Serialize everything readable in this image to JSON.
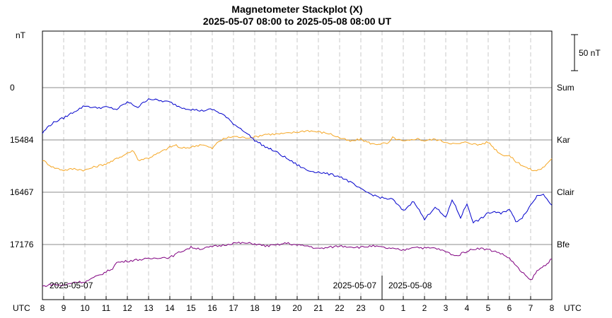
{
  "chart_data": {
    "type": "line",
    "title": "Magnetometer Stackplot (X)",
    "subtitle": "2025-05-07 08:00 to 2025-05-08 08:00 UT",
    "y_unit": "nT",
    "x_unit_left": "UTC",
    "x_unit_right": "UTC",
    "scale_bar_label": "50 nT",
    "scale_bar_value": 50,
    "x_ticks": [
      "8",
      "9",
      "10",
      "11",
      "12",
      "13",
      "14",
      "15",
      "16",
      "17",
      "18",
      "19",
      "20",
      "21",
      "22",
      "23",
      "0",
      "1",
      "2",
      "3",
      "4",
      "5",
      "6",
      "7",
      "8"
    ],
    "date_labels": [
      "2025-05-07",
      "2025-05-07",
      "2025-05-08"
    ],
    "grid": true,
    "series": [
      {
        "name": "Sum",
        "baseline_label": "0",
        "color": "#000000",
        "baseline_value": 0,
        "values": []
      },
      {
        "name": "Kar",
        "baseline_label": "15484",
        "color": "#f5a623",
        "baseline_value": 15484,
        "values": [
          [
            0,
            -28
          ],
          [
            0.5,
            -38
          ],
          [
            1,
            -42
          ],
          [
            1.5,
            -40
          ],
          [
            2,
            -42
          ],
          [
            2.5,
            -37
          ],
          [
            3,
            -33
          ],
          [
            3.3,
            -30
          ],
          [
            3.5,
            -25
          ],
          [
            3.8,
            -22
          ],
          [
            4,
            -18
          ],
          [
            4.3,
            -15
          ],
          [
            4.5,
            -28
          ],
          [
            5,
            -25
          ],
          [
            5.5,
            -18
          ],
          [
            6,
            -10
          ],
          [
            6.3,
            -7
          ],
          [
            6.5,
            -12
          ],
          [
            7,
            -10
          ],
          [
            7.5,
            -6
          ],
          [
            8,
            -12
          ],
          [
            8.3,
            -2
          ],
          [
            8.6,
            2
          ],
          [
            9,
            5
          ],
          [
            9.5,
            3
          ],
          [
            10,
            4
          ],
          [
            10.5,
            8
          ],
          [
            11,
            8
          ],
          [
            11.5,
            9
          ],
          [
            12,
            11
          ],
          [
            12.5,
            13
          ],
          [
            13,
            11
          ],
          [
            13.5,
            9
          ],
          [
            14,
            3
          ],
          [
            14.5,
            -2
          ],
          [
            15,
            1
          ],
          [
            15.3,
            -3
          ],
          [
            15.6,
            -6
          ],
          [
            16,
            -5
          ],
          [
            16.3,
            -5
          ],
          [
            16.5,
            3
          ],
          [
            17,
            -2
          ],
          [
            17.3,
            -1
          ],
          [
            17.6,
            2
          ],
          [
            18,
            -1
          ],
          [
            18.5,
            1
          ],
          [
            19,
            -3
          ],
          [
            19.5,
            -6
          ],
          [
            20,
            -3
          ],
          [
            20.5,
            -7
          ],
          [
            21,
            -3
          ],
          [
            21.3,
            -12
          ],
          [
            21.6,
            -20
          ],
          [
            22,
            -22
          ],
          [
            22.3,
            -30
          ],
          [
            22.6,
            -35
          ],
          [
            22.9,
            -40
          ],
          [
            23.2,
            -43
          ],
          [
            23.5,
            -40
          ],
          [
            23.8,
            -33
          ],
          [
            24,
            -26
          ]
        ]
      },
      {
        "name": "Clair",
        "baseline_label": "16467",
        "color": "#0000cc",
        "baseline_value": 16467,
        "values": [
          [
            0,
            82
          ],
          [
            0.3,
            92
          ],
          [
            0.6,
            98
          ],
          [
            1,
            103
          ],
          [
            1.5,
            112
          ],
          [
            2,
            120
          ],
          [
            2.5,
            117
          ],
          [
            3,
            118
          ],
          [
            3.5,
            115
          ],
          [
            4,
            125
          ],
          [
            4.5,
            118
          ],
          [
            5,
            130
          ],
          [
            5.5,
            127
          ],
          [
            6,
            125
          ],
          [
            6.5,
            118
          ],
          [
            7,
            115
          ],
          [
            7.5,
            113
          ],
          [
            8,
            115
          ],
          [
            8.5,
            108
          ],
          [
            9,
            95
          ],
          [
            9.5,
            85
          ],
          [
            10,
            72
          ],
          [
            10.5,
            63
          ],
          [
            11,
            56
          ],
          [
            11.5,
            47
          ],
          [
            12,
            38
          ],
          [
            12.5,
            30
          ],
          [
            13,
            28
          ],
          [
            13.5,
            25
          ],
          [
            14,
            22
          ],
          [
            14.5,
            14
          ],
          [
            15,
            4
          ],
          [
            15.5,
            -3
          ],
          [
            16,
            -8
          ],
          [
            16.5,
            -10
          ],
          [
            17,
            -26
          ],
          [
            17.5,
            -12
          ],
          [
            18,
            -38
          ],
          [
            18.5,
            -20
          ],
          [
            19,
            -36
          ],
          [
            19.3,
            -10
          ],
          [
            19.7,
            -35
          ],
          [
            20,
            -16
          ],
          [
            20.3,
            -42
          ],
          [
            20.6,
            -38
          ],
          [
            21,
            -29
          ],
          [
            21.3,
            -27
          ],
          [
            21.6,
            -30
          ],
          [
            22,
            -23
          ],
          [
            22.3,
            -41
          ],
          [
            22.6,
            -35
          ],
          [
            23,
            -18
          ],
          [
            23.3,
            -5
          ],
          [
            23.6,
            -2
          ],
          [
            24,
            -18
          ]
        ]
      },
      {
        "name": "Bfe",
        "baseline_label": "17176",
        "color": "#800080",
        "baseline_value": 17176,
        "values": [
          [
            0,
            -58
          ],
          [
            0.5,
            -55
          ],
          [
            1,
            -57
          ],
          [
            1.5,
            -52
          ],
          [
            2,
            -52
          ],
          [
            2.5,
            -45
          ],
          [
            3,
            -38
          ],
          [
            3.3,
            -33
          ],
          [
            3.5,
            -25
          ],
          [
            4,
            -23
          ],
          [
            4.5,
            -21
          ],
          [
            5,
            -20
          ],
          [
            5.5,
            -18
          ],
          [
            6,
            -18
          ],
          [
            6.5,
            -10
          ],
          [
            7,
            -4
          ],
          [
            7.5,
            -6
          ],
          [
            8,
            -3
          ],
          [
            8.5,
            -1
          ],
          [
            9,
            2
          ],
          [
            9.5,
            2
          ],
          [
            10,
            1
          ],
          [
            10.5,
            -2
          ],
          [
            11,
            -1
          ],
          [
            11.5,
            2
          ],
          [
            12,
            -1
          ],
          [
            12.5,
            -2
          ],
          [
            13,
            -6
          ],
          [
            13.5,
            -4
          ],
          [
            14,
            -2
          ],
          [
            14.5,
            -3
          ],
          [
            15,
            -4
          ],
          [
            15.5,
            -2
          ],
          [
            16,
            -4
          ],
          [
            16.5,
            -6
          ],
          [
            17,
            -8
          ],
          [
            17.5,
            -3
          ],
          [
            18,
            -5
          ],
          [
            18.5,
            -5
          ],
          [
            19,
            -10
          ],
          [
            19.5,
            -16
          ],
          [
            20,
            -9
          ],
          [
            20.5,
            -5
          ],
          [
            21,
            -7
          ],
          [
            21.5,
            -11
          ],
          [
            22,
            -19
          ],
          [
            22.5,
            -36
          ],
          [
            23,
            -50
          ],
          [
            23.3,
            -37
          ],
          [
            23.7,
            -28
          ],
          [
            24,
            -20
          ]
        ]
      }
    ]
  }
}
